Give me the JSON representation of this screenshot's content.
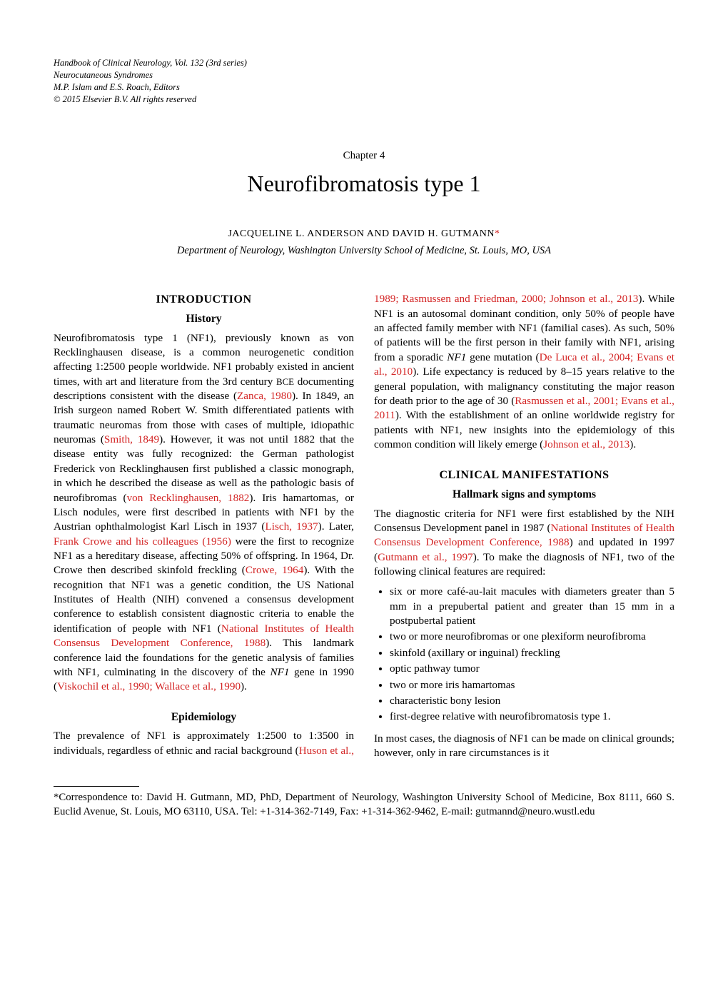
{
  "header": {
    "line1": "Handbook of Clinical Neurology, Vol. 132 (3rd series)",
    "line2": "Neurocutaneous Syndromes",
    "line3": "M.P. Islam and E.S. Roach, Editors",
    "line4": "© 2015 Elsevier B.V. All rights reserved"
  },
  "chapter": {
    "label": "Chapter 4",
    "title": "Neurofibromatosis type 1"
  },
  "authors": "JACQUELINE L. ANDERSON AND DAVID H. GUTMANN",
  "affiliation": "Department of Neurology, Washington University School of Medicine, St. Louis, MO, USA",
  "sections": {
    "introduction": "INTRODUCTION",
    "history": "History",
    "epidemiology": "Epidemiology",
    "clinical": "CLINICAL MANIFESTATIONS",
    "hallmark": "Hallmark signs and symptoms"
  },
  "body": {
    "p1a": "Neurofibromatosis type 1 (NF1), previously known as von Recklinghausen disease, is a common neurogenetic condition affecting 1:2500 people worldwide. NF1 probably existed in ancient times, with art and literature from the 3rd century ",
    "p1b": " documenting descriptions consistent with the disease (",
    "c1": "Zanca, 1980",
    "p1c": "). In 1849, an Irish surgeon named Robert W. Smith differentiated patients with traumatic neuromas from those with cases of multiple, idiopathic neuromas (",
    "c2": "Smith, 1849",
    "p1d": "). However, it was not until 1882 that the disease entity was fully recognized: the German pathologist Frederick von Recklinghausen first published a classic monograph, in which he described the disease as well as the pathologic basis of neurofibromas (",
    "c3": "von Recklinghausen, 1882",
    "p1e": "). Iris hamartomas, or Lisch nodules, were first described in patients with NF1 by the Austrian ophthalmologist Karl Lisch in 1937 (",
    "c4": "Lisch, 1937",
    "p1f": "). Later, ",
    "c5": "Frank Crowe and his colleagues (1956)",
    "p1g": " were the first to recognize NF1 as a hereditary disease, affecting 50% of offspring. In 1964, Dr. Crowe then described skinfold freckling (",
    "c6": "Crowe, 1964",
    "p1h": "). With the recognition that NF1 was a genetic condition, the US National Institutes of Health (NIH) convened a consensus development conference to establish consistent diagnostic criteria to enable the identification of people with NF1 (",
    "c7": "National Institutes of Health Consensus Development Conference, 1988",
    "p1i": "). This landmark conference laid the foundations for the genetic analysis of families with NF1, culminating in the discovery of the ",
    "p1j": " gene in 1990 (",
    "c8": "Viskochil et al., 1990; Wallace et al., 1990",
    "p1k": ").",
    "nf1gene": "NF1",
    "bce": "BCE",
    "p2a": "The prevalence of NF1 is approximately 1:2500 to 1:3500 in individuals, regardless of ethnic and racial background (",
    "c9": "Huson et al., 1989; Rasmussen and Friedman, 2000; Johnson et al., 2013",
    "p2b": "). While NF1 is an autosomal dominant condition, only 50% of people have an affected family member with NF1 (familial cases). As such, 50% of patients will be the first person in their family with NF1, arising from a sporadic ",
    "p2c": " gene mutation (",
    "c10": "De Luca et al., 2004; Evans et al., 2010",
    "p2d": "). Life expectancy is reduced by 8–15 years relative to the general population, with malignancy constituting the major reason for death prior to the age of 30 (",
    "c11": "Rasmussen et al., 2001; Evans et al., 2011",
    "p2e": "). With the establishment of an online worldwide registry for patients with NF1, new insights into the epidemiology of this common condition will likely emerge (",
    "c12": "Johnson et al., 2013",
    "p2f": ").",
    "p3a": "The diagnostic criteria for NF1 were first established by the NIH Consensus Development panel in 1987 (",
    "c13": "National Institutes of Health Consensus Development Conference, 1988",
    "p3b": ") and updated in 1997 (",
    "c14": "Gutmann et al., 1997",
    "p3c": "). To make the diagnosis of NF1, two of the following clinical features are required:",
    "criteria": [
      "six or more café-au-lait macules with diameters greater than 5 mm in a prepubertal patient and greater than 15 mm in a postpubertal patient",
      "two or more neurofibromas or one plexiform neurofibroma",
      "skinfold (axillary or inguinal) freckling",
      "optic pathway tumor",
      "two or more iris hamartomas",
      "characteristic bony lesion",
      "first-degree relative with neurofibromatosis type 1."
    ],
    "p4": "In most cases, the diagnosis of NF1 can be made on clinical grounds; however, only in rare circumstances is it"
  },
  "footnote": {
    "text": "*Correspondence to: David H. Gutmann, MD, PhD, Department of Neurology, Washington University School of Medicine, Box 8111, 660 S. Euclid Avenue, St. Louis, MO 63110, USA. Tel: +1-314-362-7149, Fax: +1-314-362-9462, E-mail: gutmannd@neuro.wustl.edu"
  },
  "colors": {
    "citation": "#d32424",
    "text": "#000000",
    "background": "#ffffff"
  }
}
